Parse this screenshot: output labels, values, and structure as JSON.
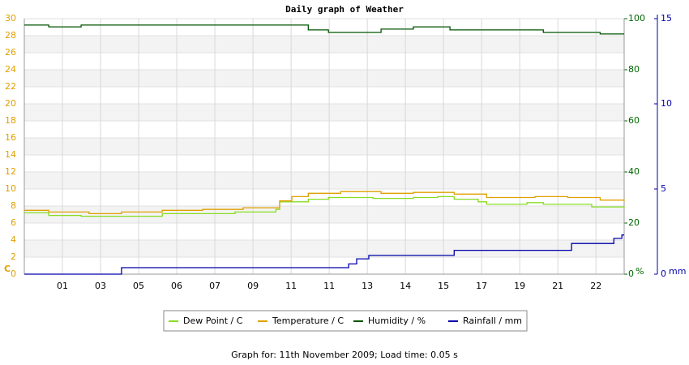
{
  "chart_data": {
    "type": "line",
    "title": "Daily graph of Weather",
    "ylabel": "C",
    "y2label": "%",
    "y3label": "mm",
    "footer": "Graph for: 11th November 2009; Load time: 0.05 s",
    "xlim": [
      0,
      15.74
    ],
    "xticks": [
      {
        "value": 1,
        "label": "01"
      },
      {
        "value": 2,
        "label": "03"
      },
      {
        "value": 3,
        "label": "05"
      },
      {
        "value": 4,
        "label": "06"
      },
      {
        "value": 5,
        "label": "07"
      },
      {
        "value": 6,
        "label": "09"
      },
      {
        "value": 7,
        "label": "11"
      },
      {
        "value": 8,
        "label": "11"
      },
      {
        "value": 9,
        "label": "13"
      },
      {
        "value": 10,
        "label": "14"
      },
      {
        "value": 11,
        "label": "15"
      },
      {
        "value": 12,
        "label": "17"
      },
      {
        "value": 13,
        "label": "19"
      },
      {
        "value": 14,
        "label": "21"
      },
      {
        "value": 15,
        "label": "22"
      }
    ],
    "ylim": [
      0,
      30
    ],
    "yticks": [
      0,
      2,
      4,
      6,
      8,
      10,
      12,
      14,
      16,
      18,
      20,
      22,
      24,
      26,
      28,
      30
    ],
    "y2lim": [
      0,
      100
    ],
    "y2ticks": [
      0,
      20,
      40,
      60,
      80,
      100
    ],
    "y3lim": [
      0,
      15
    ],
    "y3ticks": [
      0,
      5,
      10,
      15
    ],
    "grid": true,
    "series": [
      {
        "name": "Dew Point / C",
        "color": "#88dd22",
        "axis": "y",
        "x": [
          0,
          0.64,
          1.49,
          3.62,
          5.53,
          6.6,
          6.7,
          7.45,
          7.98,
          9.15,
          10.21,
          10.85,
          11.28,
          11.91,
          12.13,
          13.19,
          13.62,
          14.89,
          15.74
        ],
        "values": [
          7.2,
          6.9,
          6.8,
          7.1,
          7.3,
          7.6,
          8.5,
          8.8,
          9.0,
          8.9,
          9.0,
          9.1,
          8.8,
          8.5,
          8.2,
          8.4,
          8.2,
          7.9,
          7.8
        ]
      },
      {
        "name": "Temperature / C",
        "color": "#e0a000",
        "axis": "y",
        "x": [
          0,
          0.64,
          1.7,
          2.55,
          3.62,
          4.68,
          5.74,
          6.7,
          7.02,
          7.45,
          8.3,
          9.36,
          10.21,
          11.28,
          12.13,
          13.4,
          14.26,
          15.11,
          15.74
        ],
        "values": [
          7.5,
          7.3,
          7.1,
          7.3,
          7.5,
          7.6,
          7.8,
          8.6,
          9.1,
          9.5,
          9.7,
          9.5,
          9.6,
          9.4,
          9.0,
          9.1,
          9.0,
          8.7,
          8.6
        ]
      },
      {
        "name": "Humidity / %",
        "color": "#005500",
        "axis": "y2",
        "x": [
          0,
          0.64,
          1.49,
          7.45,
          7.98,
          9.36,
          10.21,
          11.17,
          13.62,
          15.11,
          15.74
        ],
        "values": [
          97.5,
          96.8,
          97.5,
          95.6,
          94.6,
          95.9,
          96.8,
          95.6,
          94.6,
          94.0,
          94.0
        ]
      },
      {
        "name": "Rainfall / mm",
        "color": "#0000aa",
        "axis": "y3",
        "x": [
          0,
          2.55,
          8.4,
          8.51,
          8.72,
          9.04,
          11.28,
          14.36,
          15.47,
          15.68,
          15.74
        ],
        "values": [
          0,
          0.38,
          0.38,
          0.6,
          0.9,
          1.1,
          1.4,
          1.8,
          2.1,
          2.3,
          2.3
        ]
      }
    ]
  }
}
